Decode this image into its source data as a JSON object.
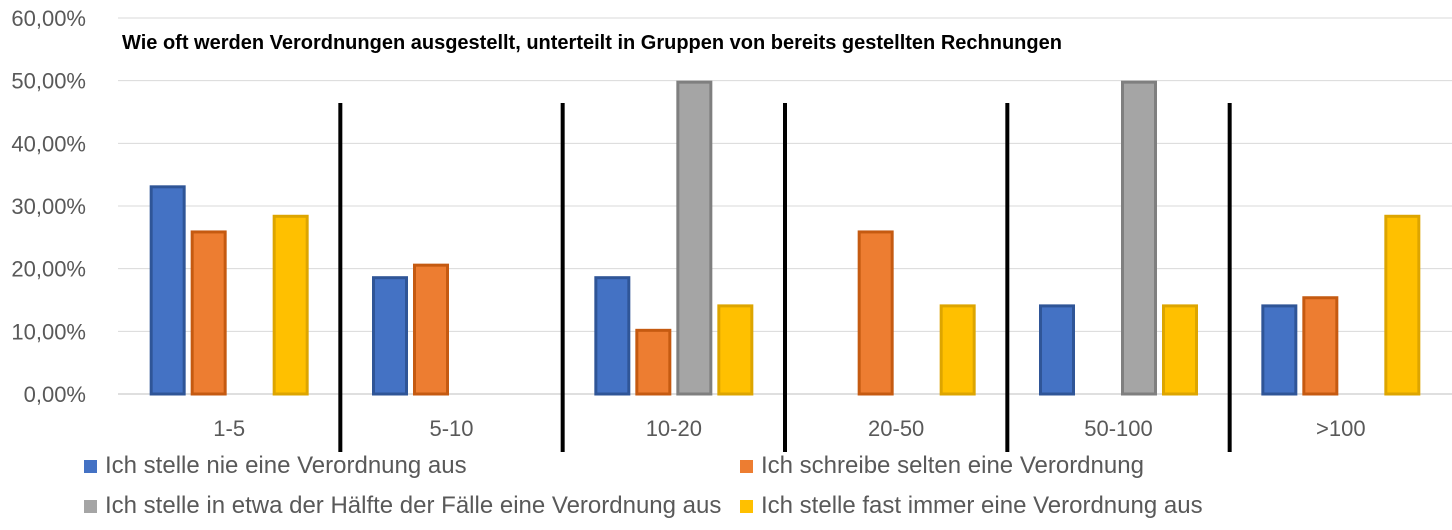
{
  "chart_data": {
    "type": "bar",
    "title": "Wie oft werden Verordnungen ausgestellt, unterteilt in Gruppen von bereits gestellten Rechnungen",
    "xlabel": "",
    "ylabel": "",
    "ylim": [
      0,
      0.6
    ],
    "yticks": [
      "0,00%",
      "10,00%",
      "20,00%",
      "30,00%",
      "40,00%",
      "50,00%",
      "60,00%"
    ],
    "categories": [
      "1-5",
      "5-10",
      "10-20",
      "20-50",
      "50-100",
      ">100"
    ],
    "grid": true,
    "legend_position": "bottom",
    "series": [
      {
        "name": "Ich stelle nie eine Verordnung aus",
        "color": "#4472C4",
        "border": "#2F5597",
        "values": [
          0.333,
          0.188,
          0.188,
          0,
          0.143,
          0.143
        ]
      },
      {
        "name": "Ich schreibe selten eine Verordnung",
        "color": "#ED7D31",
        "border": "#C55A11",
        "values": [
          0.261,
          0.208,
          0.104,
          0.261,
          0,
          0.156
        ]
      },
      {
        "name": "Ich stelle in etwa der Hälfte der Fälle eine Verordnung aus",
        "color": "#A5A5A5",
        "border": "#7F7F7F",
        "values": [
          0,
          0,
          0.5,
          0,
          0.5,
          0
        ]
      },
      {
        "name": "Ich stelle fast immer eine Verordnung aus",
        "color": "#FFC000",
        "border": "#DDA500",
        "values": [
          0.286,
          0,
          0.143,
          0.143,
          0.143,
          0.286
        ]
      }
    ],
    "separator_lines": [
      "5-10",
      "10-20",
      "20-50",
      "50-100",
      ">100"
    ]
  }
}
